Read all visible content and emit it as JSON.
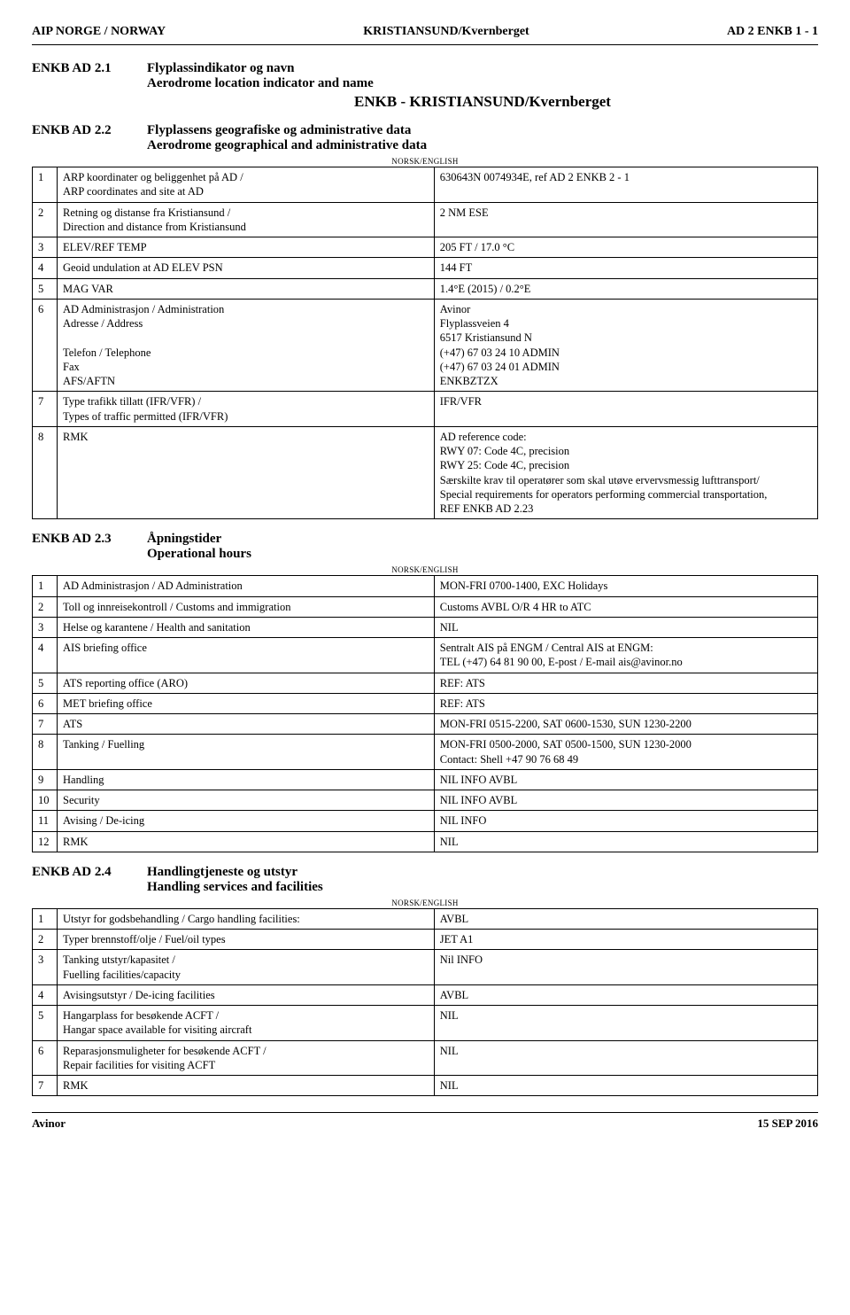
{
  "header": {
    "left": "AIP NORGE / NORWAY",
    "center": "KRISTIANSUND/Kvernberget",
    "right": "AD 2 ENKB 1 - 1"
  },
  "sections": {
    "s21": {
      "id": "ENKB AD 2.1",
      "title_no": "Flyplassindikator og navn",
      "title_en": "Aerodrome location indicator and name",
      "main": "ENKB - KRISTIANSUND/Kvernberget"
    },
    "s22": {
      "id": "ENKB AD 2.2",
      "title_no": "Flyplassens geografiske og administrative data",
      "title_en": "Aerodrome geographical and administrative data",
      "ne": "NORSK/ENGLISH",
      "rows": [
        {
          "n": "1",
          "l": "ARP koordinater og beliggenhet på AD /\nARP coordinates and site at AD",
          "v": "630643N 0074934E, ref AD 2 ENKB 2 - 1"
        },
        {
          "n": "2",
          "l": "Retning og distanse fra Kristiansund /\nDirection and distance from Kristiansund",
          "v": "2 NM ESE"
        },
        {
          "n": "3",
          "l": "ELEV/REF TEMP",
          "v": "205 FT / 17.0 °C"
        },
        {
          "n": "4",
          "l": "Geoid undulation at AD ELEV PSN",
          "v": "144 FT"
        },
        {
          "n": "5",
          "l": "MAG VAR",
          "v": "1.4°E (2015) / 0.2°E"
        },
        {
          "n": "6",
          "l": "AD Administrasjon / Administration\nAdresse / Address\n\nTelefon / Telephone\nFax\nAFS/AFTN",
          "v": "Avinor\nFlyplassveien 4\n6517 Kristiansund N\n(+47) 67 03 24 10 ADMIN\n(+47) 67 03 24 01 ADMIN\nENKBZTZX"
        },
        {
          "n": "7",
          "l": "Type trafikk tillatt (IFR/VFR) /\nTypes of traffic permitted (IFR/VFR)",
          "v": "IFR/VFR"
        },
        {
          "n": "8",
          "l": "RMK",
          "v": "AD reference code:\nRWY 07: Code 4C, precision\nRWY 25: Code 4C, precision\nSærskilte krav til operatører som skal utøve ervervsmessig lufttransport/\nSpecial requirements for operators performing commercial transportation,\nREF ENKB AD 2.23"
        }
      ]
    },
    "s23": {
      "id": "ENKB AD 2.3",
      "title_no": "Åpningstider",
      "title_en": "Operational hours",
      "ne": "NORSK/ENGLISH",
      "rows": [
        {
          "n": "1",
          "l": "AD Administrasjon / AD Administration",
          "v": "MON-FRI 0700-1400, EXC Holidays"
        },
        {
          "n": "2",
          "l": "Toll og innreisekontroll / Customs and immigration",
          "v": "Customs AVBL O/R 4 HR to ATC"
        },
        {
          "n": "3",
          "l": "Helse og karantene / Health and sanitation",
          "v": "NIL"
        },
        {
          "n": "4",
          "l": "AIS briefing office",
          "v": "Sentralt AIS på ENGM / Central AIS at ENGM:\nTEL (+47) 64 81 90 00, E-post / E-mail ais@avinor.no"
        },
        {
          "n": "5",
          "l": "ATS reporting office (ARO)",
          "v": "REF:   ATS"
        },
        {
          "n": "6",
          "l": "MET briefing office",
          "v": "REF:   ATS"
        },
        {
          "n": "7",
          "l": "ATS",
          "v": "MON-FRI 0515-2200, SAT 0600-1530, SUN 1230-2200"
        },
        {
          "n": "8",
          "l": "Tanking / Fuelling",
          "v": "MON-FRI 0500-2000, SAT 0500-1500, SUN 1230-2000\nContact: Shell +47 90 76 68 49"
        },
        {
          "n": "9",
          "l": "Handling",
          "v": "NIL INFO AVBL"
        },
        {
          "n": "10",
          "l": "Security",
          "v": "NIL INFO AVBL"
        },
        {
          "n": "11",
          "l": "Avising / De-icing",
          "v": "NIL INFO"
        },
        {
          "n": "12",
          "l": "RMK",
          "v": "NIL"
        }
      ]
    },
    "s24": {
      "id": "ENKB AD 2.4",
      "title_no": "Handlingtjeneste og utstyr",
      "title_en": "Handling services and facilities",
      "ne": "NORSK/ENGLISH",
      "rows": [
        {
          "n": "1",
          "l": "Utstyr for godsbehandling / Cargo handling facilities:",
          "v": "AVBL"
        },
        {
          "n": "2",
          "l": "Typer brennstoff/olje / Fuel/oil types",
          "v": "JET A1"
        },
        {
          "n": "3",
          "l": "Tanking utstyr/kapasitet /\nFuelling facilities/capacity",
          "v": "Nil INFO"
        },
        {
          "n": "4",
          "l": "Avisingsutstyr / De-icing facilities",
          "v": "AVBL"
        },
        {
          "n": "5",
          "l": "Hangarplass for besøkende ACFT /\nHangar space available for visiting aircraft",
          "v": "NIL"
        },
        {
          "n": "6",
          "l": "Reparasjonsmuligheter for besøkende ACFT /\nRepair facilities for visiting ACFT",
          "v": "NIL"
        },
        {
          "n": "7",
          "l": "RMK",
          "v": "NIL"
        }
      ]
    }
  },
  "footer": {
    "left": "Avinor",
    "right": "15 SEP 2016"
  }
}
